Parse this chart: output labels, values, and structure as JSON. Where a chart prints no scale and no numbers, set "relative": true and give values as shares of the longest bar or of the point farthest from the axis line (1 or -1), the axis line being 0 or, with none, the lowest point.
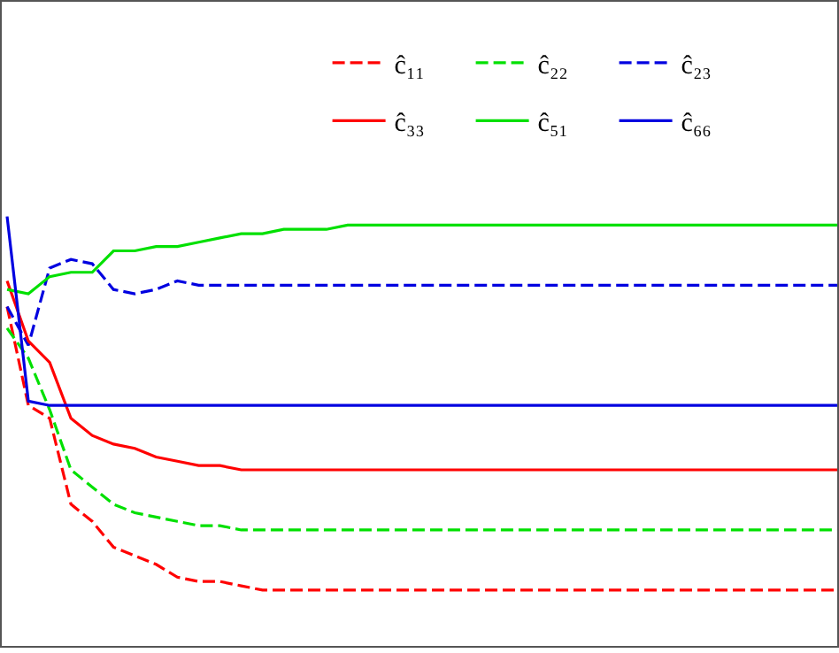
{
  "chart_data": {
    "type": "line",
    "relative": true,
    "legend": "top right",
    "marker": "none",
    "categories": [
      null,
      null,
      null,
      null,
      null,
      null,
      null,
      null,
      null,
      null,
      null,
      null,
      null,
      null,
      null,
      null,
      null,
      null,
      null,
      null,
      null,
      null,
      null,
      null,
      null,
      null,
      null,
      null,
      null,
      null,
      null,
      null,
      null,
      null,
      null,
      null,
      null,
      null,
      null,
      null
    ],
    "series": [
      {
        "name": "ĉ₁₁",
        "color": "#ff0000",
        "line_style": "dashed",
        "values": [
          0.79,
          0.56,
          0.53,
          0.33,
          0.29,
          0.23,
          0.21,
          0.19,
          0.16,
          0.15,
          0.15,
          0.14,
          0.13,
          0.13,
          0.13,
          0.13,
          0.13,
          0.13,
          0.13,
          0.13,
          0.13,
          0.13,
          0.13,
          0.13,
          0.13,
          0.13,
          0.13,
          0.13,
          0.13,
          0.13,
          0.13,
          0.13,
          0.13,
          0.13,
          0.13,
          0.13,
          0.13,
          0.13,
          0.13,
          0.13
        ]
      },
      {
        "name": "ĉ₂₂",
        "color": "#00e000",
        "line_style": "dashed",
        "values": [
          0.74,
          0.67,
          0.55,
          0.41,
          0.37,
          0.33,
          0.31,
          0.3,
          0.29,
          0.28,
          0.28,
          0.27,
          0.27,
          0.27,
          0.27,
          0.27,
          0.27,
          0.27,
          0.27,
          0.27,
          0.27,
          0.27,
          0.27,
          0.27,
          0.27,
          0.27,
          0.27,
          0.27,
          0.27,
          0.27,
          0.27,
          0.27,
          0.27,
          0.27,
          0.27,
          0.27,
          0.27,
          0.27,
          0.27,
          0.27
        ]
      },
      {
        "name": "ĉ₂₃",
        "color": "#0000e0",
        "line_style": "dashed",
        "values": [
          0.79,
          0.7,
          0.88,
          0.9,
          0.89,
          0.83,
          0.82,
          0.83,
          0.85,
          0.84,
          0.84,
          0.84,
          0.84,
          0.84,
          0.84,
          0.84,
          0.84,
          0.84,
          0.84,
          0.84,
          0.84,
          0.84,
          0.84,
          0.84,
          0.84,
          0.84,
          0.84,
          0.84,
          0.84,
          0.84,
          0.84,
          0.84,
          0.84,
          0.84,
          0.84,
          0.84,
          0.84,
          0.84,
          0.84,
          0.84
        ]
      },
      {
        "name": "ĉ₃₃",
        "color": "#ff0000",
        "line_style": "solid",
        "values": [
          0.85,
          0.71,
          0.66,
          0.53,
          0.49,
          0.47,
          0.46,
          0.44,
          0.43,
          0.42,
          0.42,
          0.41,
          0.41,
          0.41,
          0.41,
          0.41,
          0.41,
          0.41,
          0.41,
          0.41,
          0.41,
          0.41,
          0.41,
          0.41,
          0.41,
          0.41,
          0.41,
          0.41,
          0.41,
          0.41,
          0.41,
          0.41,
          0.41,
          0.41,
          0.41,
          0.41,
          0.41,
          0.41,
          0.41,
          0.41
        ]
      },
      {
        "name": "ĉ₅₁",
        "color": "#00e000",
        "line_style": "solid",
        "values": [
          0.83,
          0.82,
          0.86,
          0.87,
          0.87,
          0.92,
          0.92,
          0.93,
          0.93,
          0.94,
          0.95,
          0.96,
          0.96,
          0.97,
          0.97,
          0.97,
          0.98,
          0.98,
          0.98,
          0.98,
          0.98,
          0.98,
          0.98,
          0.98,
          0.98,
          0.98,
          0.98,
          0.98,
          0.98,
          0.98,
          0.98,
          0.98,
          0.98,
          0.98,
          0.98,
          0.98,
          0.98,
          0.98,
          0.98,
          0.98
        ]
      },
      {
        "name": "ĉ₆₆",
        "color": "#0000e0",
        "line_style": "solid",
        "values": [
          1.0,
          0.57,
          0.56,
          0.56,
          0.56,
          0.56,
          0.56,
          0.56,
          0.56,
          0.56,
          0.56,
          0.56,
          0.56,
          0.56,
          0.56,
          0.56,
          0.56,
          0.56,
          0.56,
          0.56,
          0.56,
          0.56,
          0.56,
          0.56,
          0.56,
          0.56,
          0.56,
          0.56,
          0.56,
          0.56,
          0.56,
          0.56,
          0.56,
          0.56,
          0.56,
          0.56,
          0.56,
          0.56,
          0.56,
          0.56
        ]
      }
    ]
  }
}
